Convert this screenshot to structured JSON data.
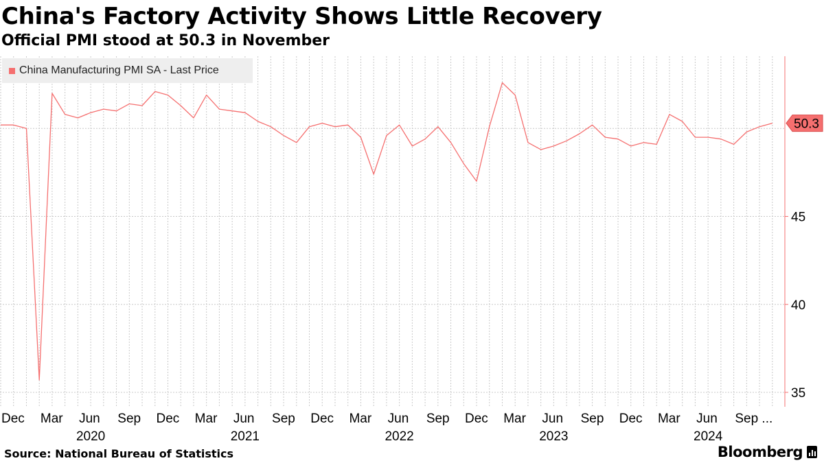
{
  "header": {
    "title": "China's Factory Activity Shows Little Recovery",
    "subtitle": "Official PMI stood at 50.3 in November"
  },
  "legend": {
    "label": "China Manufacturing PMI SA - Last Price"
  },
  "footer": {
    "source": "Source: National Bureau of Statistics",
    "brand": "Bloomberg"
  },
  "colors": {
    "series": "#f56f6f",
    "grid": "#c8c8c8",
    "axis": "#f56f6f",
    "text": "#000000"
  },
  "chart_data": {
    "type": "line",
    "start_month": "2019-11",
    "series": [
      {
        "name": "China Manufacturing PMI SA - Last Price",
        "values": [
          50.2,
          50.2,
          50.0,
          35.7,
          52.0,
          50.8,
          50.6,
          50.9,
          51.1,
          51.0,
          51.4,
          51.3,
          52.1,
          51.9,
          51.3,
          50.6,
          51.9,
          51.1,
          51.0,
          50.9,
          50.4,
          50.1,
          49.6,
          49.2,
          50.1,
          50.3,
          50.1,
          50.2,
          49.5,
          47.4,
          49.6,
          50.2,
          49.0,
          49.4,
          50.1,
          49.2,
          48.0,
          47.0,
          50.1,
          52.6,
          51.9,
          49.2,
          48.8,
          49.0,
          49.3,
          49.7,
          50.2,
          49.5,
          49.4,
          49.0,
          49.2,
          49.1,
          50.8,
          50.4,
          49.5,
          49.5,
          49.4,
          49.1,
          49.8,
          50.1,
          50.3
        ]
      }
    ],
    "ylim": [
      34,
      55
    ],
    "yticks": [
      35,
      40,
      45
    ],
    "last_value_label": "50.3",
    "x_tick_labels": [
      "Dec",
      "Mar",
      "Jun",
      "Sep",
      "Dec",
      "Mar",
      "Jun",
      "Sep",
      "Dec",
      "Mar",
      "Jun",
      "Sep",
      "Dec",
      "Mar",
      "Jun",
      "Sep",
      "Dec",
      "Mar",
      "Jun",
      "Sep ..."
    ],
    "year_labels": [
      "2020",
      "2021",
      "2022",
      "2023",
      "2024"
    ],
    "xlabel": "",
    "ylabel": "",
    "grid": true,
    "legend_position": "top-left"
  }
}
